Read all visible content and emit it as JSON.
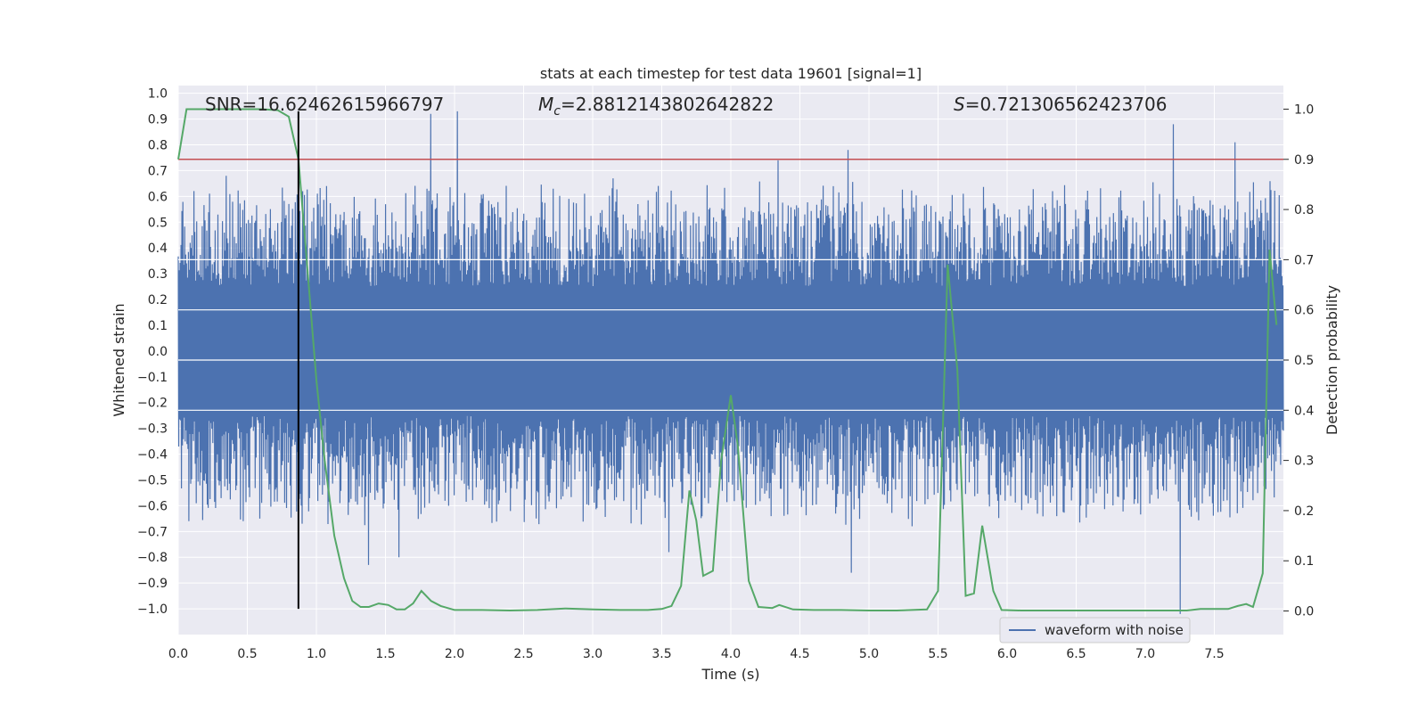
{
  "chart_data": {
    "type": "line",
    "title": "stats at each timestep for test data 19601 [signal=1]",
    "xlabel": "Time (s)",
    "ylabel_left": "Whitened strain",
    "ylabel_right": "Detection probability",
    "xlim": [
      0.0,
      8.0
    ],
    "ylim_left": [
      -1.1,
      1.03
    ],
    "ylim_right": [
      -0.047,
      1.047
    ],
    "x_ticks": [
      0.0,
      0.5,
      1.0,
      1.5,
      2.0,
      2.5,
      3.0,
      3.5,
      4.0,
      4.5,
      5.0,
      5.5,
      6.0,
      6.5,
      7.0,
      7.5
    ],
    "x_tick_labels": [
      "0.0",
      "0.5",
      "1.0",
      "1.5",
      "2.0",
      "2.5",
      "3.0",
      "3.5",
      "4.0",
      "4.5",
      "5.0",
      "5.5",
      "6.0",
      "6.5",
      "7.0",
      "7.5"
    ],
    "y_left_ticks": [
      1.0,
      0.9,
      0.8,
      0.7,
      0.6,
      0.5,
      0.4,
      0.3,
      0.2,
      0.1,
      0.0,
      -0.1,
      -0.2,
      -0.3,
      -0.4,
      -0.5,
      -0.6,
      -0.7,
      -0.8,
      -0.9,
      -1.0
    ],
    "y_left_tick_labels": [
      "1.0",
      "0.9",
      "0.8",
      "0.7",
      "0.6",
      "0.5",
      "0.4",
      "0.3",
      "0.2",
      "0.1",
      "0.0",
      "−0.1",
      "−0.2",
      "−0.3",
      "−0.4",
      "−0.5",
      "−0.6",
      "−0.7",
      "−0.8",
      "−0.9",
      "−1.0"
    ],
    "y_right_ticks": [
      1.0,
      0.9,
      0.8,
      0.7,
      0.6,
      0.5,
      0.4,
      0.3,
      0.2,
      0.1,
      0.0
    ],
    "y_right_tick_labels": [
      "1.0",
      "0.9",
      "0.8",
      "0.7",
      "0.6",
      "0.5",
      "0.4",
      "0.3",
      "0.2",
      "0.1",
      "0.0"
    ],
    "annotations": {
      "snr": "SNR=16.62462615966797",
      "mc": "=2.8812143802642822",
      "mc_symbol": "M",
      "mc_subscript": "c",
      "s": "=0.721306562423706",
      "s_symbol": "S"
    },
    "legend": {
      "position": "lower-right",
      "entries": [
        "waveform with noise"
      ]
    },
    "threshold": {
      "axis": "right",
      "value": 0.9,
      "color": "#c44e52"
    },
    "marker_line": {
      "x": 0.87,
      "y_from": -1.0,
      "y_to": 0.93,
      "color": "#000000"
    },
    "waveform": {
      "name": "waveform with noise",
      "color": "#4c72b0",
      "x_range": [
        0.0,
        8.0
      ],
      "dense_band": [
        -0.42,
        0.42
      ],
      "typical_peak_pos": 0.58,
      "typical_peak_neg": -0.6,
      "notable_peaks": [
        {
          "x": 1.83,
          "y": 0.92
        },
        {
          "x": 2.02,
          "y": 0.93
        },
        {
          "x": 4.85,
          "y": 0.78
        },
        {
          "x": 7.2,
          "y": 0.88
        },
        {
          "x": 7.65,
          "y": 0.81
        },
        {
          "x": 0.35,
          "y": 0.68
        },
        {
          "x": 3.15,
          "y": 0.67
        },
        {
          "x": 4.34,
          "y": 0.74
        },
        {
          "x": 1.38,
          "y": -0.83
        },
        {
          "x": 1.6,
          "y": -0.8
        },
        {
          "x": 4.87,
          "y": -0.86
        },
        {
          "x": 7.25,
          "y": -1.02
        },
        {
          "x": 3.55,
          "y": -0.78
        },
        {
          "x": 0.47,
          "y": -0.66
        },
        {
          "x": 0.08,
          "y": -0.66
        }
      ]
    },
    "detection_probability": {
      "name": "detection probability",
      "color": "#55a868",
      "x": [
        0.0,
        0.06,
        0.2,
        0.4,
        0.6,
        0.72,
        0.8,
        0.87,
        0.93,
        1.0,
        1.06,
        1.13,
        1.2,
        1.26,
        1.32,
        1.38,
        1.45,
        1.52,
        1.58,
        1.64,
        1.7,
        1.76,
        1.83,
        1.9,
        2.0,
        2.2,
        2.4,
        2.6,
        2.8,
        3.0,
        3.2,
        3.4,
        3.5,
        3.57,
        3.64,
        3.7,
        3.75,
        3.8,
        3.87,
        3.93,
        4.0,
        4.05,
        4.13,
        4.2,
        4.3,
        4.35,
        4.45,
        4.6,
        4.8,
        5.0,
        5.2,
        5.42,
        5.5,
        5.57,
        5.64,
        5.7,
        5.76,
        5.82,
        5.9,
        5.96,
        6.1,
        6.4,
        6.7,
        7.0,
        7.3,
        7.4,
        7.5,
        7.6,
        7.67,
        7.73,
        7.78,
        7.85,
        7.9,
        7.95
      ],
      "y": [
        0.9,
        1.0,
        1.0,
        1.0,
        1.0,
        0.998,
        0.985,
        0.9,
        0.7,
        0.46,
        0.3,
        0.15,
        0.065,
        0.02,
        0.008,
        0.008,
        0.015,
        0.012,
        0.003,
        0.003,
        0.015,
        0.04,
        0.02,
        0.01,
        0.002,
        0.002,
        0.001,
        0.002,
        0.005,
        0.003,
        0.002,
        0.002,
        0.004,
        0.01,
        0.05,
        0.24,
        0.18,
        0.07,
        0.08,
        0.3,
        0.43,
        0.33,
        0.06,
        0.008,
        0.006,
        0.012,
        0.003,
        0.002,
        0.002,
        0.001,
        0.001,
        0.003,
        0.04,
        0.69,
        0.48,
        0.03,
        0.035,
        0.17,
        0.04,
        0.002,
        0.001,
        0.001,
        0.001,
        0.001,
        0.001,
        0.004,
        0.004,
        0.004,
        0.01,
        0.014,
        0.008,
        0.075,
        0.72,
        0.57
      ]
    }
  }
}
